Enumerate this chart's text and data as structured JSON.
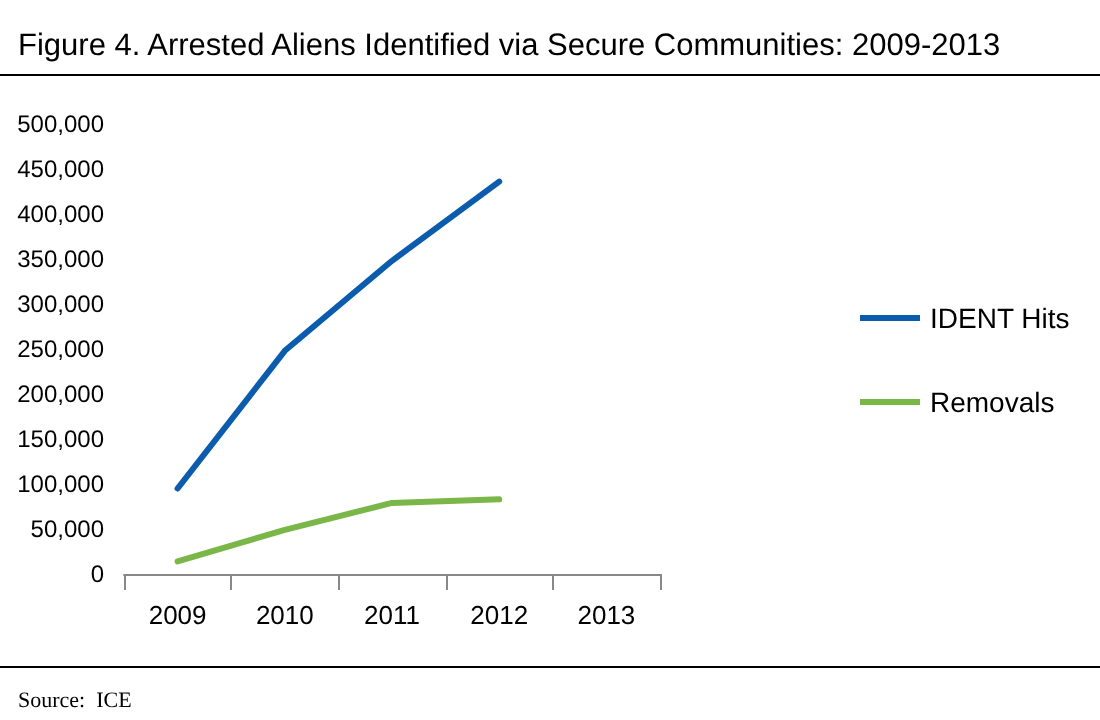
{
  "chart_data": {
    "type": "line",
    "title": "Figure 4. Arrested Aliens Identified via Secure Communities: 2009-2013",
    "categories": [
      "2009",
      "2010",
      "2011",
      "2012",
      "2013"
    ],
    "series": [
      {
        "name": "IDENT Hits",
        "color": "#0b5cad",
        "values": [
          95000,
          248000,
          348000,
          436000,
          null
        ]
      },
      {
        "name": "Removals",
        "color": "#7ab648",
        "values": [
          14000,
          49000,
          79000,
          83000,
          null
        ]
      }
    ],
    "ylim": [
      0,
      500000
    ],
    "yticks": [
      0,
      {
        "value": 50000,
        "label": "50,000"
      },
      {
        "value": 100000,
        "label": "100,000"
      },
      {
        "value": 150000,
        "label": "150,000"
      },
      {
        "value": 200000,
        "label": "200,000"
      },
      {
        "value": 250000,
        "label": "250,000"
      },
      {
        "value": 300000,
        "label": "300,000"
      },
      {
        "value": 350000,
        "label": "350,000"
      },
      {
        "value": 400000,
        "label": "400,000"
      },
      {
        "value": 450000,
        "label": "450,000"
      },
      {
        "value": 500000,
        "label": "500,000"
      }
    ],
    "grid": false,
    "legend": "right",
    "marker": "none",
    "line_style": "solid",
    "annotations": [
      "Source:  ICE"
    ]
  }
}
